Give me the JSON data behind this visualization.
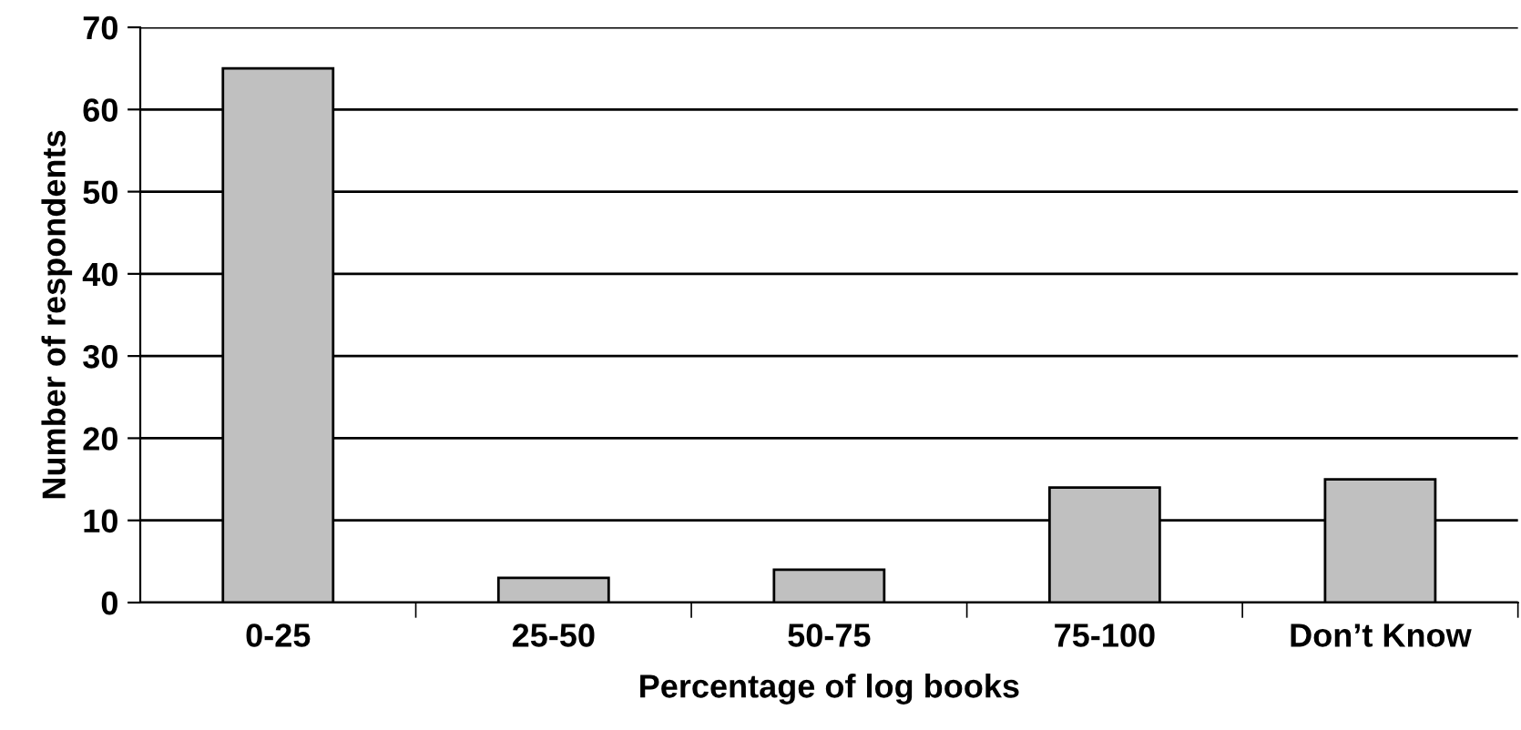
{
  "chart_data": {
    "type": "bar",
    "xlabel": "Percentage of log books",
    "ylabel": "Number of respondents",
    "categories": [
      "0-25",
      "25-50",
      "50-75",
      "75-100",
      "Don’t Know"
    ],
    "values": [
      65,
      3,
      4,
      14,
      15
    ],
    "color": "#c0c0c0",
    "ylim": [
      0,
      70
    ],
    "yticks": [
      0,
      10,
      20,
      30,
      40,
      50,
      60,
      70
    ],
    "grid": "y",
    "legend": false
  }
}
